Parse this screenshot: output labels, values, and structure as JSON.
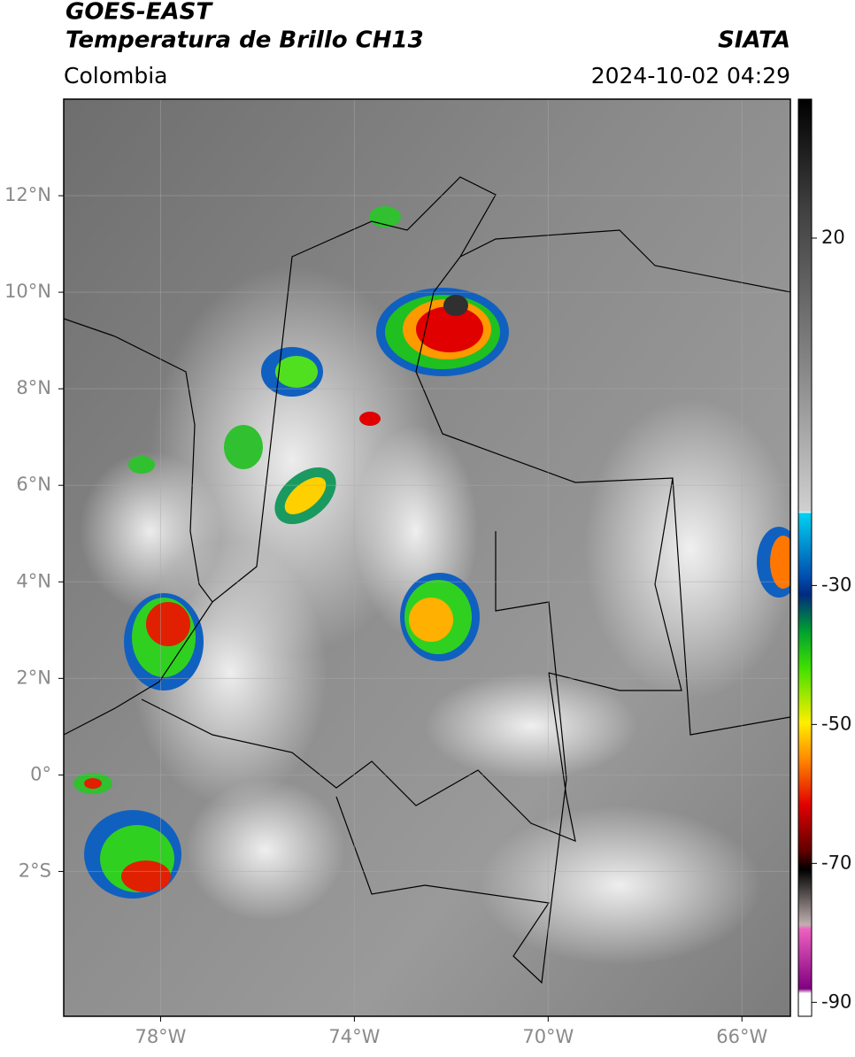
{
  "header": {
    "title": "GOES-EAST",
    "subtitle": "Temperatura de Brillo CH13",
    "region": "Colombia",
    "source": "SIATA",
    "timestamp": "2024-10-02 04:29"
  },
  "map": {
    "xlim": [
      -80,
      -65
    ],
    "ylim": [
      -5,
      14
    ],
    "xticks": [
      {
        "value": -78,
        "label": "78°W"
      },
      {
        "value": -74,
        "label": "74°W"
      },
      {
        "value": -70,
        "label": "70°W"
      },
      {
        "value": -66,
        "label": "66°W"
      }
    ],
    "yticks": [
      {
        "value": 12,
        "label": "12°N"
      },
      {
        "value": 10,
        "label": "10°N"
      },
      {
        "value": 8,
        "label": "8°N"
      },
      {
        "value": 6,
        "label": "6°N"
      },
      {
        "value": 4,
        "label": "4°N"
      },
      {
        "value": 2,
        "label": "2°N"
      },
      {
        "value": 0,
        "label": "0°"
      },
      {
        "value": -2,
        "label": "2°S"
      }
    ],
    "grid": true
  },
  "colorbar": {
    "lim": [
      -92,
      40
    ],
    "ticks": [
      20,
      -30,
      -50,
      -70,
      -90
    ]
  }
}
